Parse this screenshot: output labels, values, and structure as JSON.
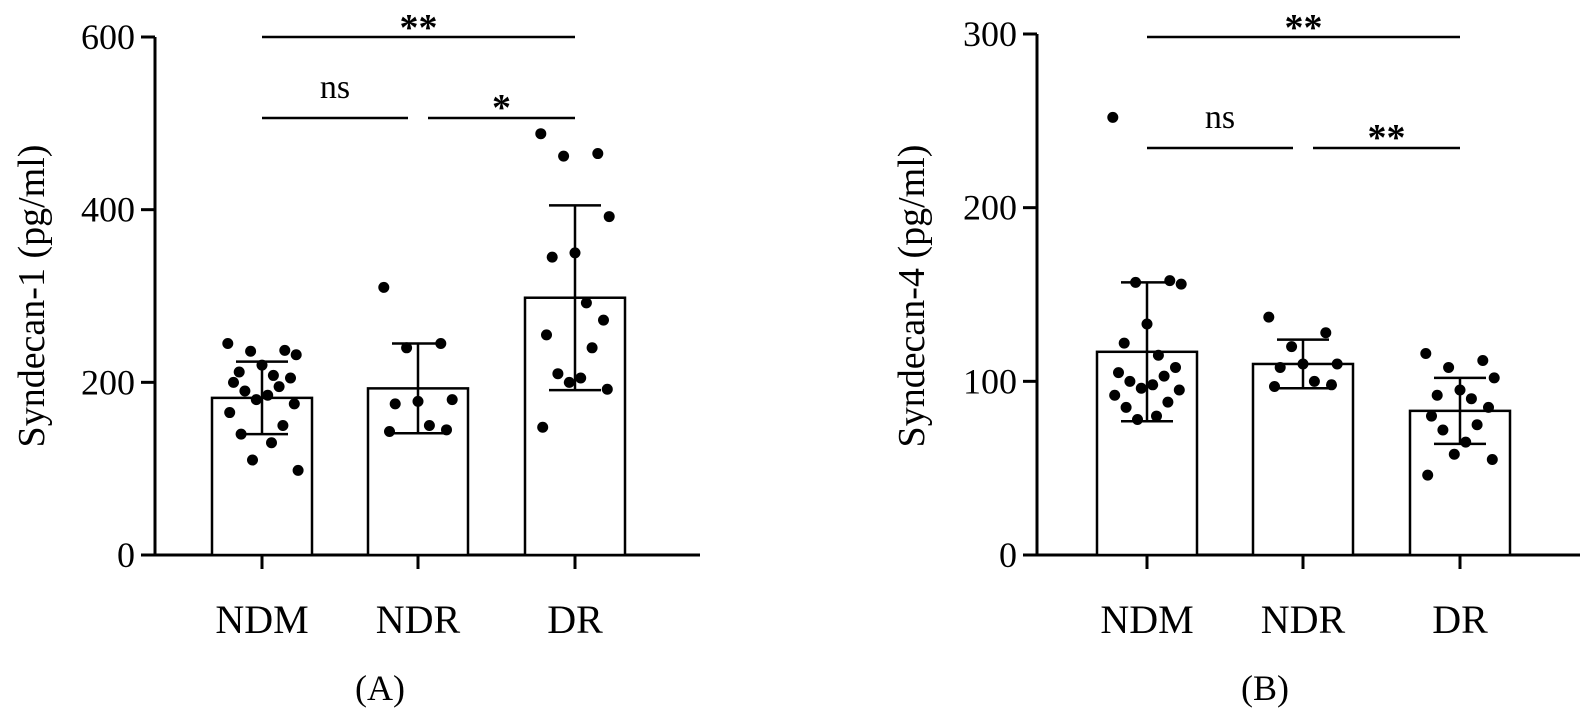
{
  "chart_data": [
    {
      "type": "bar",
      "panel_label": "(A)",
      "ylabel": "Syndecan-1 (pg/ml)",
      "ylim": [
        0,
        600
      ],
      "yticks": [
        0,
        200,
        400,
        600
      ],
      "categories": [
        "NDM",
        "NDR",
        "DR"
      ],
      "series": [
        {
          "values": [
            182,
            193,
            298
          ],
          "sd": [
            42,
            52,
            107
          ],
          "points": [
            [
              245,
              237,
              236,
              232,
              220,
              212,
              208,
              205,
              200,
              195,
              190,
              185,
              180,
              175,
              165,
              150,
              140,
              130,
              110,
              98
            ],
            [
              310,
              245,
              240,
              180,
              178,
              175,
              150,
              145,
              143
            ],
            [
              488,
              465,
              462,
              392,
              350,
              345,
              292,
              272,
              255,
              240,
              210,
              205,
              200,
              192,
              148
            ]
          ]
        }
      ],
      "significance": [
        {
          "groups": [
            "NDM",
            "DR"
          ],
          "label": "**"
        },
        {
          "groups": [
            "NDM",
            "NDR"
          ],
          "label": "ns"
        },
        {
          "groups": [
            "NDR",
            "DR"
          ],
          "label": "*"
        }
      ]
    },
    {
      "type": "bar",
      "panel_label": "(B)",
      "ylabel": "Syndecan-4 (pg/ml)",
      "ylim": [
        0,
        300
      ],
      "yticks": [
        0,
        100,
        200,
        300
      ],
      "categories": [
        "NDM",
        "NDR",
        "DR"
      ],
      "series": [
        {
          "values": [
            117,
            110,
            83
          ],
          "sd": [
            40,
            14,
            19
          ],
          "points": [
            [
              252,
              158,
              157,
              156,
              133,
              122,
              115,
              108,
              105,
              103,
              100,
              98,
              96,
              95,
              92,
              88,
              85,
              80,
              78
            ],
            [
              137,
              128,
              120,
              110,
              110,
              108,
              100,
              98,
              97
            ],
            [
              116,
              112,
              108,
              102,
              95,
              92,
              90,
              85,
              80,
              75,
              72,
              65,
              58,
              55,
              46
            ]
          ]
        }
      ],
      "significance": [
        {
          "groups": [
            "NDM",
            "DR"
          ],
          "label": "**"
        },
        {
          "groups": [
            "NDM",
            "NDR"
          ],
          "label": "ns"
        },
        {
          "groups": [
            "NDR",
            "DR"
          ],
          "label": "**"
        }
      ]
    }
  ]
}
